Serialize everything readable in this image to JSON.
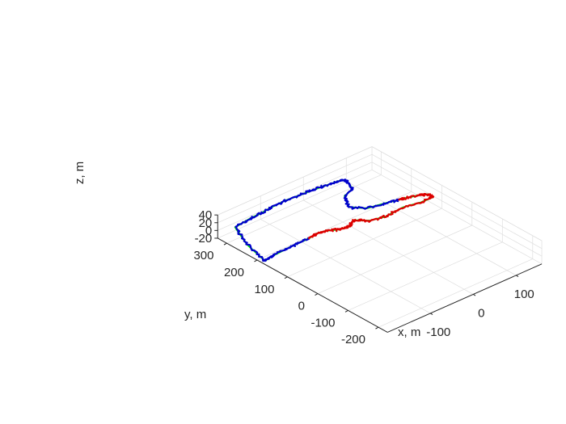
{
  "chart_data": {
    "type": "line3d",
    "xlabel": "x, m",
    "ylabel": "y, m",
    "zlabel": "z, m",
    "xlim": [
      -200,
      160
    ],
    "ylim": [
      -230,
      330
    ],
    "zlim": [
      -20,
      40
    ],
    "x_ticks": [
      {
        "value": -100,
        "label": "-100"
      },
      {
        "value": 0,
        "label": "0"
      },
      {
        "value": 100,
        "label": "100"
      }
    ],
    "y_ticks": [
      {
        "value": -200,
        "label": "-200"
      },
      {
        "value": -100,
        "label": "-100"
      },
      {
        "value": 0,
        "label": "0"
      },
      {
        "value": 100,
        "label": "100"
      },
      {
        "value": 200,
        "label": "200"
      },
      {
        "value": 300,
        "label": "300"
      }
    ],
    "z_ticks": [
      {
        "value": -20,
        "label": "-20"
      },
      {
        "value": 0,
        "label": "0"
      },
      {
        "value": 20,
        "label": "20"
      },
      {
        "value": 40,
        "label": "40"
      }
    ],
    "grid": true,
    "series": [
      {
        "color": "#00dd00",
        "noise": 0,
        "points": [
          [
            -210,
            160,
            0
          ],
          [
            -195,
            240,
            0
          ],
          [
            -170,
            315,
            0
          ],
          [
            -130,
            322,
            0
          ],
          [
            -100,
            324,
            0
          ],
          [
            -75,
            328,
            0
          ],
          [
            -45,
            330,
            0
          ],
          [
            -15,
            327,
            0
          ],
          [
            10,
            325,
            0
          ],
          [
            35,
            322,
            0
          ],
          [
            60,
            318,
            0
          ],
          [
            80,
            315,
            0
          ],
          [
            82,
            300,
            0
          ],
          [
            72,
            270,
            0
          ],
          [
            45,
            258,
            0
          ],
          [
            25,
            215,
            0
          ],
          [
            45,
            185,
            0
          ],
          [
            80,
            175,
            0
          ],
          [
            120,
            162,
            0
          ],
          [
            148,
            150,
            0
          ],
          [
            157,
            142,
            0
          ],
          [
            158,
            125,
            0
          ],
          [
            130,
            125,
            0
          ],
          [
            95,
            135,
            0
          ],
          [
            50,
            130,
            0
          ],
          [
            20,
            140,
            0
          ],
          [
            0,
            165,
            0
          ],
          [
            -20,
            150,
            0
          ],
          [
            -40,
            155,
            0
          ],
          [
            -60,
            170,
            0
          ],
          [
            -80,
            175,
            0
          ],
          [
            -100,
            170,
            0
          ],
          [
            -130,
            170,
            0
          ],
          [
            -160,
            168,
            0
          ],
          [
            -190,
            165,
            0
          ],
          [
            -210,
            160,
            0
          ]
        ]
      },
      {
        "color": "#0000cc",
        "noise": 2.6,
        "points": [
          [
            -210,
            160,
            0
          ],
          [
            -195,
            240,
            0
          ],
          [
            -170,
            315,
            0
          ],
          [
            -130,
            322,
            0
          ],
          [
            -100,
            324,
            0
          ],
          [
            -75,
            328,
            0
          ],
          [
            -45,
            330,
            0
          ],
          [
            -15,
            327,
            0
          ],
          [
            10,
            325,
            0
          ],
          [
            35,
            322,
            0
          ],
          [
            60,
            318,
            0
          ],
          [
            80,
            315,
            0
          ],
          [
            82,
            300,
            0
          ],
          [
            72,
            270,
            0
          ],
          [
            45,
            258,
            0
          ],
          [
            25,
            215,
            0
          ],
          [
            45,
            185,
            0
          ],
          [
            80,
            175,
            0
          ],
          [
            108,
            166,
            0
          ]
        ]
      },
      {
        "color": "#0000cc",
        "noise": 2.6,
        "points": [
          [
            -100,
            170,
            0
          ],
          [
            -130,
            170,
            0
          ],
          [
            -160,
            168,
            0
          ],
          [
            -190,
            165,
            0
          ],
          [
            -210,
            160,
            0
          ]
        ]
      },
      {
        "color": "#dd0000",
        "noise": 2.6,
        "points": [
          [
            108,
            166,
            0
          ],
          [
            120,
            162,
            0
          ],
          [
            148,
            150,
            0
          ],
          [
            157,
            142,
            0
          ],
          [
            158,
            125,
            0
          ],
          [
            130,
            125,
            0
          ],
          [
            95,
            135,
            0
          ],
          [
            50,
            130,
            0
          ],
          [
            20,
            140,
            0
          ],
          [
            0,
            165,
            0
          ],
          [
            -20,
            150,
            0
          ],
          [
            -40,
            155,
            0
          ],
          [
            -60,
            170,
            0
          ],
          [
            -80,
            175,
            0
          ],
          [
            -100,
            170,
            0
          ]
        ]
      }
    ]
  }
}
